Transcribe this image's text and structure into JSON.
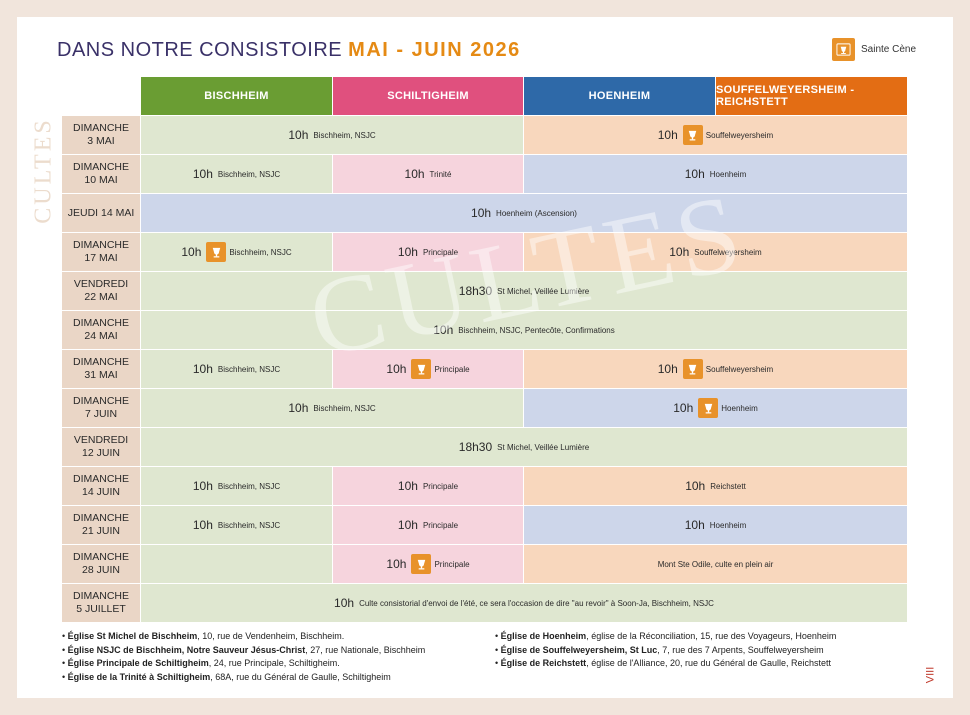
{
  "title": {
    "part1": "DANS NOTRE CONSISTOIRE ",
    "part2": "MAI - JUIN 2026"
  },
  "legend": {
    "label": "Sainte Cène",
    "icon": "communion-cup-icon"
  },
  "side_label": "CULTES",
  "watermark": "CULTES",
  "page_number": "VIII",
  "columns": [
    {
      "label": "BISCHHEIM",
      "color": "#6a9d33"
    },
    {
      "label": "SCHILTIGHEIM",
      "color": "#e0507e"
    },
    {
      "label": "HOENHEIM",
      "color": "#2e69a8"
    },
    {
      "label": "SOUFFELWEYERSHEIM - REICHSTETT",
      "color": "#e36d14"
    }
  ],
  "rows": [
    {
      "day": [
        "DIMANCHE",
        "3 MAI"
      ],
      "cells": [
        {
          "time": "10h",
          "text": "Bischheim, NSJC",
          "start": 0,
          "span": 2,
          "color": "green",
          "cene": false
        },
        {
          "time": "10h",
          "text": "Souffelweyersheim",
          "start": 2,
          "span": 2,
          "color": "orange",
          "cene": true
        }
      ]
    },
    {
      "day": [
        "DIMANCHE",
        "10 MAI"
      ],
      "cells": [
        {
          "time": "10h",
          "text": "Bischheim, NSJC",
          "start": 0,
          "span": 1,
          "color": "green",
          "cene": false
        },
        {
          "time": "10h",
          "text": "Trinité",
          "start": 1,
          "span": 1,
          "color": "pink",
          "cene": false
        },
        {
          "time": "10h",
          "text": "Hoenheim",
          "start": 2,
          "span": 2,
          "color": "blue",
          "cene": false
        }
      ]
    },
    {
      "day": [
        "JEUDI 14 MAI"
      ],
      "cells": [
        {
          "time": "10h",
          "text": "Hoenheim (Ascension)",
          "start": 0,
          "span": 4,
          "color": "blue",
          "cene": false
        }
      ]
    },
    {
      "day": [
        "DIMANCHE",
        "17 MAI"
      ],
      "cells": [
        {
          "time": "10h",
          "text": "Bischheim, NSJC",
          "start": 0,
          "span": 1,
          "color": "green",
          "cene": true
        },
        {
          "time": "10h",
          "text": "Principale",
          "start": 1,
          "span": 1,
          "color": "pink",
          "cene": false
        },
        {
          "time": "10h",
          "text": "Souffelweyersheim",
          "start": 2,
          "span": 2,
          "color": "orange",
          "cene": false
        }
      ]
    },
    {
      "day": [
        "VENDREDI",
        "22 MAI"
      ],
      "cells": [
        {
          "time": "18h30",
          "text": "St Michel, Veillée Lumière",
          "start": 0,
          "span": 4,
          "color": "green",
          "cene": false
        }
      ]
    },
    {
      "day": [
        "DIMANCHE",
        "24 MAI"
      ],
      "cells": [
        {
          "time": "10h",
          "text": "Bischheim, NSJC, Pentecôte, Confirmations",
          "start": 0,
          "span": 4,
          "color": "green",
          "cene": false
        }
      ]
    },
    {
      "day": [
        "DIMANCHE",
        "31 MAI"
      ],
      "cells": [
        {
          "time": "10h",
          "text": "Bischheim, NSJC",
          "start": 0,
          "span": 1,
          "color": "green",
          "cene": false
        },
        {
          "time": "10h",
          "text": "Principale",
          "start": 1,
          "span": 1,
          "color": "pink",
          "cene": true
        },
        {
          "time": "10h",
          "text": "Souffelweyersheim",
          "start": 2,
          "span": 2,
          "color": "orange",
          "cene": true
        }
      ]
    },
    {
      "day": [
        "DIMANCHE",
        "7 JUIN"
      ],
      "cells": [
        {
          "time": "10h",
          "text": "Bischheim, NSJC",
          "start": 0,
          "span": 2,
          "color": "green",
          "cene": false
        },
        {
          "time": "10h",
          "text": "Hoenheim",
          "start": 2,
          "span": 2,
          "color": "blue",
          "cene": true
        }
      ]
    },
    {
      "day": [
        "VENDREDI",
        "12 JUIN"
      ],
      "cells": [
        {
          "time": "18h30",
          "text": "St Michel, Veillée Lumière",
          "start": 0,
          "span": 4,
          "color": "green",
          "cene": false
        }
      ]
    },
    {
      "day": [
        "DIMANCHE",
        "14 JUIN"
      ],
      "cells": [
        {
          "time": "10h",
          "text": "Bischheim, NSJC",
          "start": 0,
          "span": 1,
          "color": "green",
          "cene": false
        },
        {
          "time": "10h",
          "text": "Principale",
          "start": 1,
          "span": 1,
          "color": "pink",
          "cene": false
        },
        {
          "time": "10h",
          "text": "Reichstett",
          "start": 2,
          "span": 2,
          "color": "orange",
          "cene": false
        }
      ]
    },
    {
      "day": [
        "DIMANCHE",
        "21 JUIN"
      ],
      "cells": [
        {
          "time": "10h",
          "text": "Bischheim, NSJC",
          "start": 0,
          "span": 1,
          "color": "green",
          "cene": false
        },
        {
          "time": "10h",
          "text": "Principale",
          "start": 1,
          "span": 1,
          "color": "pink",
          "cene": false
        },
        {
          "time": "10h",
          "text": "Hoenheim",
          "start": 2,
          "span": 2,
          "color": "blue",
          "cene": false
        }
      ]
    },
    {
      "day": [
        "DIMANCHE",
        "28 JUIN"
      ],
      "cells": [
        {
          "time": "",
          "text": "",
          "start": 0,
          "span": 1,
          "color": "green",
          "cene": false
        },
        {
          "time": "10h",
          "text": "Principale",
          "start": 1,
          "span": 1,
          "color": "pink",
          "cene": true
        },
        {
          "time": "",
          "text": "Mont Ste Odile, culte en plein air",
          "start": 2,
          "span": 2,
          "color": "orange",
          "cene": false
        }
      ]
    },
    {
      "day": [
        "DIMANCHE",
        "5 JUILLET"
      ],
      "cells": [
        {
          "time": "10h",
          "text": "Culte consistorial d'envoi de l'été, ce sera l'occasion de dire \"au revoir\" à Soon-Ja, Bischheim, NSJC",
          "start": 0,
          "span": 4,
          "color": "green",
          "cene": false
        }
      ]
    }
  ],
  "notes_left": [
    {
      "name": "Église St Michel de Bischheim",
      "rest": ", 10, rue de Vendenheim, Bischheim."
    },
    {
      "name": "Église NSJC de Bischheim, Notre Sauveur Jésus-Christ",
      "rest": ", 27, rue Nationale, Bischheim"
    },
    {
      "name": "Église Principale de Schiltigheim",
      "rest": ", 24, rue Principale, Schiltigheim."
    },
    {
      "name": "Église de la Trinité à Schiltigheim",
      "rest": ", 68A, rue du Général de Gaulle, Schiltigheim"
    }
  ],
  "notes_right": [
    {
      "name": "Église de Hoenheim",
      "rest": ", église de la Réconciliation, 15, rue des Voyageurs, Hoenheim"
    },
    {
      "name": "Église de Souffelweyersheim, St Luc",
      "rest": ", 7, rue des 7 Arpents, Souffelweyersheim"
    },
    {
      "name": "Église de Reichstett",
      "rest": ", église de l'Alliance, 20, rue du Général de Gaulle, Reichstett"
    }
  ]
}
